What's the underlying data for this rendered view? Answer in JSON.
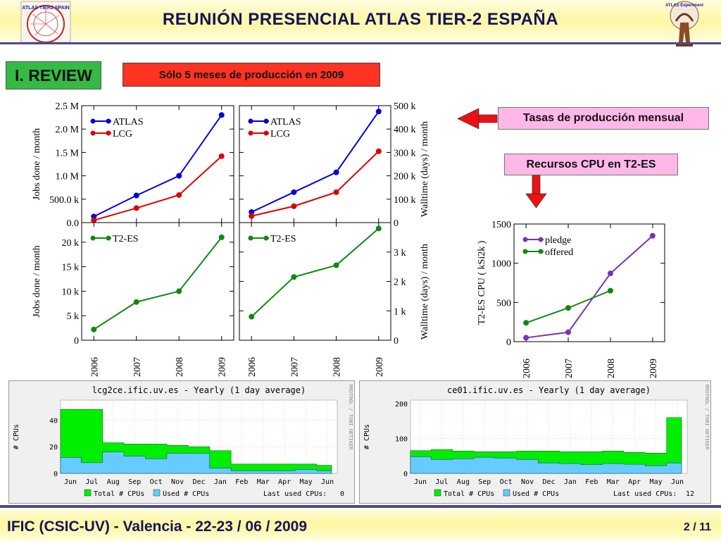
{
  "header": {
    "title": "REUNIÓN  PRESENCIAL  ATLAS  TIER-2  ESPAÑA",
    "logo_left_text": "ATLAS TIER2 SPAIN",
    "logo_right_text": "ATLAS Experiment"
  },
  "labels": {
    "review": "I. REVIEW",
    "production_note": "Sólo 5 meses de producción en 2009",
    "monthly_rates": "Tasas de producción mensual",
    "cpu_resources": "Recursos CPU en T2-ES"
  },
  "chart_data": [
    {
      "type": "line",
      "categories": [
        "2006",
        "2007",
        "2008",
        "2009"
      ],
      "ylabel": "Jobs done / month",
      "y_ticks": [
        "0.0",
        "500.0 k",
        "1.0 M",
        "1.5 M",
        "2.0 M",
        "2.5 M"
      ],
      "ylim": [
        0,
        2500000
      ],
      "legend": "top-left",
      "series": [
        {
          "name": "ATLAS",
          "color": "#0000dd",
          "values": [
            130000,
            580000,
            1000000,
            2300000
          ]
        },
        {
          "name": "LCG",
          "color": "#dd0000",
          "values": [
            50000,
            310000,
            590000,
            1420000
          ]
        }
      ]
    },
    {
      "type": "line",
      "categories": [
        "2006",
        "2007",
        "2008",
        "2009"
      ],
      "ylabel": "Walltime (days) / month",
      "y_ticks": [
        "0",
        "100 k",
        "200 k",
        "300 k",
        "400 k",
        "500 k"
      ],
      "ylim": [
        0,
        500000
      ],
      "legend": "top-left",
      "series": [
        {
          "name": "ATLAS",
          "color": "#0000dd",
          "values": [
            45000,
            130000,
            215000,
            475000
          ]
        },
        {
          "name": "LCG",
          "color": "#dd0000",
          "values": [
            28000,
            70000,
            130000,
            305000
          ]
        }
      ]
    },
    {
      "type": "line",
      "categories": [
        "2006",
        "2007",
        "2008",
        "2009"
      ],
      "ylabel": "Jobs done / month",
      "y_ticks": [
        "0",
        "5 k",
        "10 k",
        "15 k",
        "20 k"
      ],
      "ylim": [
        0,
        24000
      ],
      "legend": "top-left",
      "series": [
        {
          "name": "T2-ES",
          "color": "#118811",
          "values": [
            2200,
            7800,
            10000,
            21000
          ]
        }
      ]
    },
    {
      "type": "line",
      "categories": [
        "2006",
        "2007",
        "2008",
        "2009"
      ],
      "ylabel": "Walltime (days) / month",
      "y_ticks": [
        "0",
        "1 k",
        "2 k",
        "3 k"
      ],
      "ylim": [
        0,
        4000
      ],
      "legend": "top-left",
      "series": [
        {
          "name": "T2-ES",
          "color": "#118811",
          "values": [
            800,
            2150,
            2550,
            3800
          ]
        }
      ]
    },
    {
      "type": "line",
      "categories": [
        "2006",
        "2007",
        "2008",
        "2009"
      ],
      "ylabel": "T2-ES CPU ( kSi2k )",
      "y_ticks": [
        "0",
        "500",
        "1000",
        "1500"
      ],
      "ylim": [
        0,
        1500
      ],
      "legend": "top-left",
      "series": [
        {
          "name": "pledge",
          "color": "#7733bb",
          "values": [
            50,
            120,
            870,
            1350
          ]
        },
        {
          "name": "offered",
          "color": "#118811",
          "values": [
            240,
            430,
            650,
            null
          ]
        }
      ]
    },
    {
      "type": "area",
      "title": "lcg2ce.ific.uv.es - Yearly (1 day average)",
      "ylabel": "# CPUs",
      "side_text": "RRDTOOL / TOBI OETIKER",
      "y_ticks": [
        "0",
        "20",
        "40"
      ],
      "ylim": [
        0,
        55
      ],
      "categories": [
        "Jun",
        "Jul",
        "Aug",
        "Sep",
        "Oct",
        "Nov",
        "Dec",
        "Jan",
        "Feb",
        "Mar",
        "Apr",
        "May",
        "Jun"
      ],
      "legend_total": "Total # CPUs",
      "legend_used": "Used # CPUs",
      "last_used_label": "Last used CPUs:",
      "last_used_value": "0",
      "series": [
        {
          "name": "Total # CPUs",
          "color": "#00ee00",
          "values": [
            48,
            48,
            23,
            22,
            22,
            21,
            20,
            17,
            7,
            7,
            7,
            7,
            6
          ]
        },
        {
          "name": "Used # CPUs",
          "color": "#66ccff",
          "values": [
            12,
            8,
            16,
            13,
            11,
            15,
            15,
            4,
            2,
            2,
            2,
            3,
            2
          ]
        }
      ]
    },
    {
      "type": "area",
      "title": "ce01.ific.uv.es - Yearly (1 day average)",
      "ylabel": "# CPUs",
      "side_text": "RRDTOOL / TOBI OETIKER",
      "y_ticks": [
        "0",
        "100",
        "200"
      ],
      "ylim": [
        0,
        210
      ],
      "categories": [
        "Jun",
        "Jul",
        "Aug",
        "Sep",
        "Oct",
        "Nov",
        "Dec",
        "Jan",
        "Feb",
        "Mar",
        "Apr",
        "May",
        "Jun"
      ],
      "legend_total": "Total # CPUs",
      "legend_used": "Used # CPUs",
      "last_used_label": "Last used CPUs:",
      "last_used_value": "12",
      "series": [
        {
          "name": "Total # CPUs",
          "color": "#00ee00",
          "values": [
            65,
            68,
            64,
            62,
            62,
            64,
            64,
            62,
            62,
            64,
            60,
            58,
            160
          ]
        },
        {
          "name": "Used # CPUs",
          "color": "#66ccff",
          "values": [
            48,
            40,
            42,
            46,
            44,
            40,
            30,
            28,
            25,
            28,
            26,
            22,
            30
          ]
        }
      ]
    }
  ],
  "footer": {
    "event": "IFIC (CSIC-UV)  -  Valencia  -  22-23 / 06 / 2009",
    "page": "2 / 11"
  }
}
